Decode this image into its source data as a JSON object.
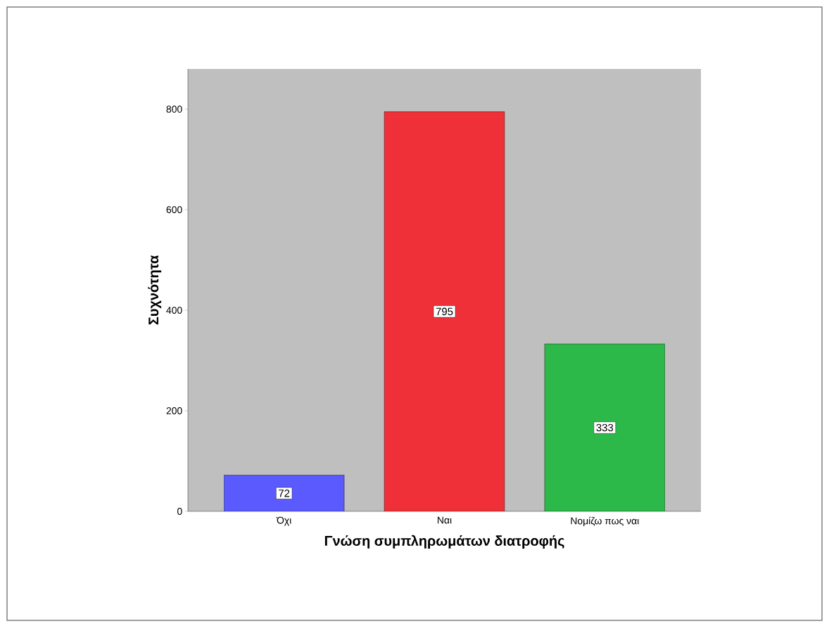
{
  "chart_data": {
    "type": "bar",
    "xlabel": "Γνώση συμπληρωμάτων διατροφής",
    "ylabel": "Συχνότητα",
    "categories": [
      "Όχι",
      "Ναι",
      "Νομίζω πως ναι"
    ],
    "values": [
      72,
      795,
      333
    ],
    "colors": [
      "#5a5aff",
      "#ef3038",
      "#2db84a"
    ],
    "ylim": [
      0,
      880
    ],
    "yticks": [
      0,
      200,
      400,
      600,
      800
    ],
    "data_labels": true
  }
}
